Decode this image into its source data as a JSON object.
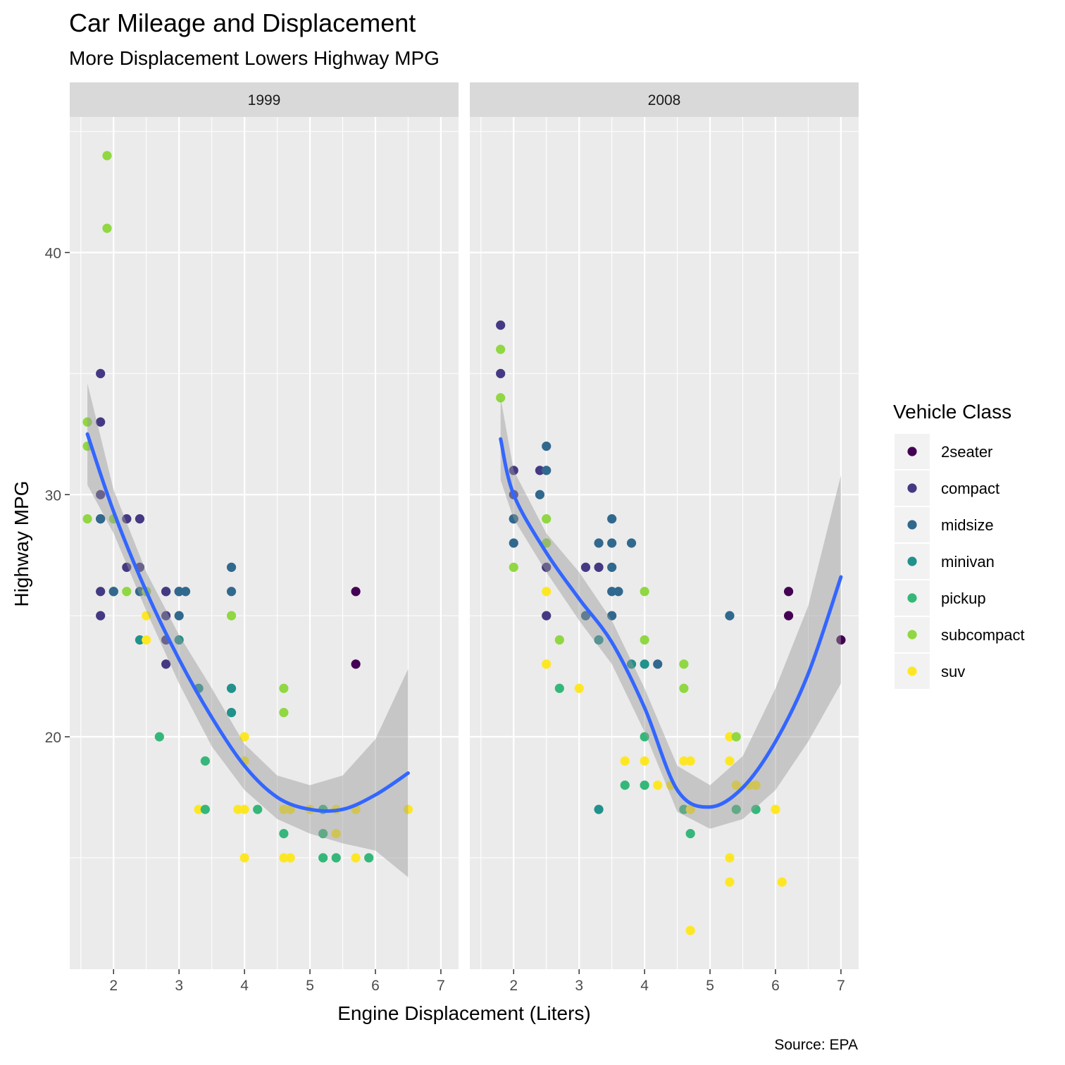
{
  "chart_data": {
    "type": "scatter",
    "title": "Car Mileage and Displacement",
    "subtitle": "More Displacement Lowers Highway MPG",
    "xlabel": "Engine Displacement (Liters)",
    "ylabel": "Highway MPG",
    "caption": "Source: EPA",
    "xlim": [
      1.33,
      7.27
    ],
    "ylim": [
      10.4,
      45.6
    ],
    "x_ticks": [
      2,
      3,
      4,
      5,
      6,
      7
    ],
    "y_ticks": [
      20,
      30,
      40
    ],
    "grid": true,
    "legend": {
      "title": "Vehicle Class",
      "position": "right",
      "entries": [
        {
          "label": "2seater",
          "color": "#440154"
        },
        {
          "label": "compact",
          "color": "#443983"
        },
        {
          "label": "midsize",
          "color": "#31688E"
        },
        {
          "label": "minivan",
          "color": "#21918C"
        },
        {
          "label": "pickup",
          "color": "#35B779"
        },
        {
          "label": "subcompact",
          "color": "#90D743"
        },
        {
          "label": "suv",
          "color": "#FDE725"
        }
      ]
    },
    "smooth_color": "#3366FF",
    "band_color": "#999999",
    "panels": [
      {
        "label": "1999",
        "points": [
          [
            1.9,
            44,
            "subcompact"
          ],
          [
            1.9,
            41,
            "subcompact"
          ],
          [
            1.6,
            33,
            "subcompact"
          ],
          [
            1.6,
            32,
            "subcompact"
          ],
          [
            1.6,
            29,
            "subcompact"
          ],
          [
            1.8,
            35,
            "compact"
          ],
          [
            1.8,
            33,
            "compact"
          ],
          [
            1.8,
            30,
            "compact"
          ],
          [
            1.8,
            29,
            "compact"
          ],
          [
            1.8,
            29,
            "midsize"
          ],
          [
            1.8,
            26,
            "compact"
          ],
          [
            1.8,
            25,
            "compact"
          ],
          [
            2.0,
            29,
            "subcompact"
          ],
          [
            2.0,
            26,
            "compact"
          ],
          [
            2.0,
            26,
            "subcompact"
          ],
          [
            2.0,
            26,
            "midsize"
          ],
          [
            2.2,
            29,
            "compact"
          ],
          [
            2.2,
            27,
            "compact"
          ],
          [
            2.2,
            26,
            "subcompact"
          ],
          [
            2.4,
            29,
            "compact"
          ],
          [
            2.4,
            27,
            "compact"
          ],
          [
            2.4,
            26,
            "midsize"
          ],
          [
            2.4,
            24,
            "minivan"
          ],
          [
            2.5,
            26,
            "pickup"
          ],
          [
            2.5,
            26,
            "subcompact"
          ],
          [
            2.5,
            25,
            "suv"
          ],
          [
            2.5,
            24,
            "suv"
          ],
          [
            2.7,
            20,
            "pickup"
          ],
          [
            2.8,
            26,
            "midsize"
          ],
          [
            2.8,
            26,
            "compact"
          ],
          [
            2.8,
            25,
            "compact"
          ],
          [
            2.8,
            24,
            "compact"
          ],
          [
            2.8,
            23,
            "compact"
          ],
          [
            3.0,
            26,
            "compact"
          ],
          [
            3.0,
            26,
            "midsize"
          ],
          [
            3.0,
            25,
            "midsize"
          ],
          [
            3.0,
            24,
            "minivan"
          ],
          [
            3.1,
            26,
            "midsize"
          ],
          [
            3.3,
            22,
            "minivan"
          ],
          [
            3.3,
            17,
            "suv"
          ],
          [
            3.4,
            19,
            "pickup"
          ],
          [
            3.4,
            17,
            "pickup"
          ],
          [
            3.8,
            27,
            "midsize"
          ],
          [
            3.8,
            26,
            "midsize"
          ],
          [
            3.8,
            25,
            "subcompact"
          ],
          [
            3.8,
            22,
            "minivan"
          ],
          [
            3.8,
            21,
            "minivan"
          ],
          [
            3.9,
            17,
            "suv"
          ],
          [
            4.0,
            20,
            "suv"
          ],
          [
            4.0,
            19,
            "suv"
          ],
          [
            4.0,
            17,
            "suv"
          ],
          [
            4.0,
            15,
            "suv"
          ],
          [
            4.2,
            17,
            "pickup"
          ],
          [
            4.6,
            22,
            "subcompact"
          ],
          [
            4.6,
            21,
            "subcompact"
          ],
          [
            4.6,
            17,
            "suv"
          ],
          [
            4.6,
            16,
            "pickup"
          ],
          [
            4.6,
            15,
            "suv"
          ],
          [
            4.7,
            17,
            "suv"
          ],
          [
            4.7,
            15,
            "suv"
          ],
          [
            5.0,
            17,
            "suv"
          ],
          [
            5.2,
            17,
            "pickup"
          ],
          [
            5.2,
            16,
            "pickup"
          ],
          [
            5.2,
            15,
            "pickup"
          ],
          [
            5.4,
            17,
            "suv"
          ],
          [
            5.4,
            16,
            "suv"
          ],
          [
            5.4,
            15,
            "pickup"
          ],
          [
            5.7,
            26,
            "2seater"
          ],
          [
            5.7,
            23,
            "2seater"
          ],
          [
            5.7,
            17,
            "suv"
          ],
          [
            5.7,
            15,
            "suv"
          ],
          [
            5.9,
            15,
            "pickup"
          ],
          [
            6.5,
            17,
            "suv"
          ]
        ],
        "smooth": [
          [
            1.6,
            32.5
          ],
          [
            2.0,
            29.3
          ],
          [
            2.5,
            26.0
          ],
          [
            3.0,
            23.2
          ],
          [
            3.5,
            20.8
          ],
          [
            4.0,
            18.8
          ],
          [
            4.5,
            17.5
          ],
          [
            5.0,
            17.0
          ],
          [
            5.5,
            17.0
          ],
          [
            6.0,
            17.6
          ],
          [
            6.5,
            18.5
          ]
        ],
        "band_upper": [
          [
            1.6,
            34.6
          ],
          [
            2.0,
            30.2
          ],
          [
            2.5,
            26.8
          ],
          [
            3.0,
            24.2
          ],
          [
            3.5,
            22.0
          ],
          [
            4.0,
            19.7
          ],
          [
            4.5,
            18.4
          ],
          [
            5.0,
            18.0
          ],
          [
            5.5,
            18.4
          ],
          [
            6.0,
            19.9
          ],
          [
            6.5,
            22.8
          ]
        ],
        "band_lower": [
          [
            1.6,
            30.4
          ],
          [
            2.0,
            28.4
          ],
          [
            2.5,
            25.2
          ],
          [
            3.0,
            22.2
          ],
          [
            3.5,
            19.6
          ],
          [
            4.0,
            17.8
          ],
          [
            4.5,
            16.6
          ],
          [
            5.0,
            16.0
          ],
          [
            5.5,
            15.6
          ],
          [
            6.0,
            15.3
          ],
          [
            6.5,
            14.2
          ]
        ]
      },
      {
        "label": "2008",
        "points": [
          [
            1.8,
            37,
            "compact"
          ],
          [
            1.8,
            36,
            "subcompact"
          ],
          [
            1.8,
            35,
            "compact"
          ],
          [
            1.8,
            34,
            "subcompact"
          ],
          [
            2.0,
            31,
            "compact"
          ],
          [
            2.0,
            30,
            "compact"
          ],
          [
            2.0,
            29,
            "compact"
          ],
          [
            2.0,
            29,
            "midsize"
          ],
          [
            2.0,
            28,
            "midsize"
          ],
          [
            2.0,
            27,
            "subcompact"
          ],
          [
            2.4,
            31,
            "compact"
          ],
          [
            2.4,
            30,
            "midsize"
          ],
          [
            2.5,
            32,
            "midsize"
          ],
          [
            2.5,
            31,
            "midsize"
          ],
          [
            2.5,
            29,
            "subcompact"
          ],
          [
            2.5,
            28,
            "subcompact"
          ],
          [
            2.5,
            27,
            "compact"
          ],
          [
            2.5,
            26,
            "suv"
          ],
          [
            2.5,
            25,
            "compact"
          ],
          [
            2.5,
            23,
            "suv"
          ],
          [
            2.7,
            24,
            "subcompact"
          ],
          [
            2.7,
            22,
            "pickup"
          ],
          [
            3.0,
            22,
            "suv"
          ],
          [
            3.1,
            27,
            "compact"
          ],
          [
            3.1,
            25,
            "midsize"
          ],
          [
            3.3,
            28,
            "midsize"
          ],
          [
            3.3,
            27,
            "compact"
          ],
          [
            3.3,
            24,
            "minivan"
          ],
          [
            3.3,
            17,
            "minivan"
          ],
          [
            3.5,
            29,
            "midsize"
          ],
          [
            3.5,
            28,
            "midsize"
          ],
          [
            3.5,
            27,
            "midsize"
          ],
          [
            3.5,
            26,
            "midsize"
          ],
          [
            3.5,
            25,
            "midsize"
          ],
          [
            3.6,
            26,
            "midsize"
          ],
          [
            3.7,
            19,
            "suv"
          ],
          [
            3.7,
            18,
            "pickup"
          ],
          [
            3.8,
            28,
            "midsize"
          ],
          [
            3.8,
            23,
            "minivan"
          ],
          [
            4.0,
            26,
            "subcompact"
          ],
          [
            4.0,
            24,
            "subcompact"
          ],
          [
            4.0,
            23,
            "minivan"
          ],
          [
            4.0,
            20,
            "pickup"
          ],
          [
            4.0,
            19,
            "suv"
          ],
          [
            4.0,
            18,
            "pickup"
          ],
          [
            4.2,
            23,
            "midsize"
          ],
          [
            4.2,
            18,
            "suv"
          ],
          [
            4.4,
            18,
            "suv"
          ],
          [
            4.6,
            23,
            "subcompact"
          ],
          [
            4.6,
            22,
            "subcompact"
          ],
          [
            4.6,
            19,
            "suv"
          ],
          [
            4.6,
            17,
            "pickup"
          ],
          [
            4.7,
            19,
            "suv"
          ],
          [
            4.7,
            17,
            "suv"
          ],
          [
            4.7,
            16,
            "pickup"
          ],
          [
            4.7,
            12,
            "suv"
          ],
          [
            5.3,
            25,
            "midsize"
          ],
          [
            5.3,
            20,
            "suv"
          ],
          [
            5.3,
            19,
            "suv"
          ],
          [
            5.3,
            15,
            "suv"
          ],
          [
            5.3,
            14,
            "suv"
          ],
          [
            5.4,
            20,
            "subcompact"
          ],
          [
            5.4,
            18,
            "suv"
          ],
          [
            5.4,
            17,
            "pickup"
          ],
          [
            5.6,
            18,
            "suv"
          ],
          [
            5.7,
            18,
            "suv"
          ],
          [
            5.7,
            17,
            "pickup"
          ],
          [
            6.0,
            17,
            "suv"
          ],
          [
            6.1,
            14,
            "suv"
          ],
          [
            6.2,
            26,
            "2seater"
          ],
          [
            6.2,
            25,
            "2seater"
          ],
          [
            7.0,
            24,
            "2seater"
          ]
        ],
        "smooth": [
          [
            1.8,
            32.3
          ],
          [
            2.0,
            30.0
          ],
          [
            2.5,
            27.6
          ],
          [
            3.0,
            25.7
          ],
          [
            3.5,
            23.9
          ],
          [
            4.0,
            21.2
          ],
          [
            4.5,
            17.8
          ],
          [
            5.0,
            17.1
          ],
          [
            5.5,
            17.9
          ],
          [
            6.0,
            19.8
          ],
          [
            6.5,
            22.6
          ],
          [
            7.0,
            26.6
          ]
        ],
        "band_upper": [
          [
            1.8,
            34.0
          ],
          [
            2.0,
            31.0
          ],
          [
            2.5,
            28.4
          ],
          [
            3.0,
            26.8
          ],
          [
            3.5,
            24.8
          ],
          [
            4.0,
            22.0
          ],
          [
            4.5,
            18.8
          ],
          [
            5.0,
            18.0
          ],
          [
            5.5,
            19.2
          ],
          [
            6.0,
            22.0
          ],
          [
            6.5,
            25.4
          ],
          [
            7.0,
            30.8
          ]
        ],
        "band_lower": [
          [
            1.8,
            30.6
          ],
          [
            2.0,
            29.0
          ],
          [
            2.5,
            26.8
          ],
          [
            3.0,
            24.8
          ],
          [
            3.5,
            23.0
          ],
          [
            4.0,
            20.2
          ],
          [
            4.5,
            16.9
          ],
          [
            5.0,
            16.2
          ],
          [
            5.5,
            16.6
          ],
          [
            6.0,
            17.8
          ],
          [
            6.5,
            19.8
          ],
          [
            7.0,
            22.2
          ]
        ]
      }
    ]
  }
}
